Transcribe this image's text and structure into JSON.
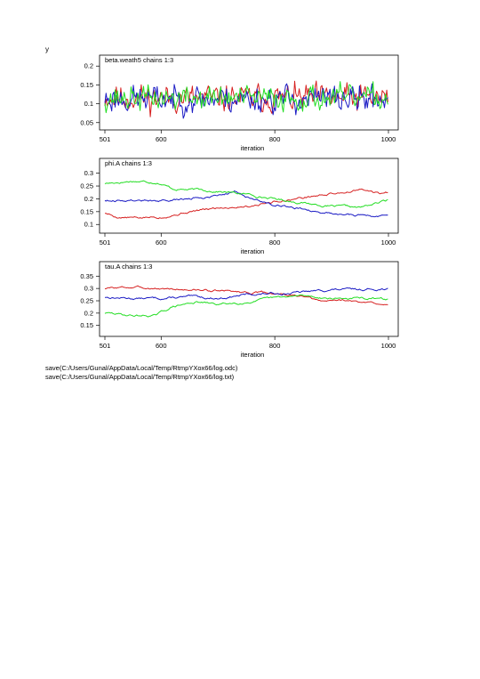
{
  "page": {
    "label": "y"
  },
  "colors": {
    "chain1": "#d62020",
    "chain2": "#1a1ac4",
    "chain3": "#22dd22"
  },
  "log": [
    "save(C:/Users/Gunal/AppData/Local/Temp/RtmpYXox66/log.odc)",
    "save(C:/Users/Gunal/AppData/Local/Temp/RtmpYXox66/log.txt)"
  ],
  "chart_data": [
    {
      "type": "line",
      "title": "beta.weath5 chains 1:3",
      "xlabel": "iteration",
      "ylabel": "",
      "xlim": [
        501,
        1000
      ],
      "ylim": [
        0.04,
        0.21
      ],
      "xticks": [
        501,
        600,
        800,
        1000
      ],
      "xtick_labels": [
        "501",
        "600",
        "800",
        "1000"
      ],
      "yticks": [
        0.05,
        0.1,
        0.15,
        0.2
      ],
      "ytick_labels": [
        "0.05",
        "0.1",
        "0.15",
        "0.2"
      ],
      "series": [
        {
          "color": "#d62020",
          "kind": "noise",
          "level": [
            [
              501,
              0.115
            ],
            [
              1000,
              0.115
            ]
          ],
          "amp": 0.045,
          "seed": 11
        },
        {
          "color": "#1a1ac4",
          "kind": "noise",
          "level": [
            [
              501,
              0.113
            ],
            [
              1000,
              0.113
            ]
          ],
          "amp": 0.045,
          "seed": 23
        },
        {
          "color": "#22dd22",
          "kind": "noise",
          "level": [
            [
              501,
              0.115
            ],
            [
              1000,
              0.115
            ]
          ],
          "amp": 0.04,
          "seed": 37
        }
      ]
    },
    {
      "type": "line",
      "title": "phi.A chains 1:3",
      "xlabel": "iteration",
      "ylabel": "",
      "xlim": [
        501,
        1000
      ],
      "ylim": [
        0.08,
        0.33
      ],
      "xticks": [
        501,
        600,
        800,
        1000
      ],
      "xtick_labels": [
        "501",
        "600",
        "800",
        "1000"
      ],
      "yticks": [
        0.1,
        0.15,
        0.2,
        0.25,
        0.3
      ],
      "ytick_labels": [
        "0.1",
        "0.15",
        "0.2",
        "0.25",
        "0.3"
      ],
      "series": [
        {
          "color": "#d62020",
          "kind": "walk",
          "level": [
            [
              501,
              0.145
            ],
            [
              520,
              0.13
            ],
            [
              560,
              0.125
            ],
            [
              600,
              0.13
            ],
            [
              650,
              0.15
            ],
            [
              700,
              0.165
            ],
            [
              760,
              0.175
            ],
            [
              800,
              0.19
            ],
            [
              850,
              0.205
            ],
            [
              900,
              0.22
            ],
            [
              950,
              0.235
            ],
            [
              985,
              0.22
            ],
            [
              1000,
              0.225
            ]
          ],
          "amp": 0.006,
          "seed": 5
        },
        {
          "color": "#1a1ac4",
          "kind": "walk",
          "level": [
            [
              501,
              0.195
            ],
            [
              550,
              0.195
            ],
            [
              600,
              0.19
            ],
            [
              650,
              0.2
            ],
            [
              700,
              0.215
            ],
            [
              730,
              0.23
            ],
            [
              760,
              0.2
            ],
            [
              800,
              0.18
            ],
            [
              850,
              0.16
            ],
            [
              900,
              0.145
            ],
            [
              950,
              0.135
            ],
            [
              985,
              0.13
            ],
            [
              1000,
              0.14
            ]
          ],
          "amp": 0.006,
          "seed": 9
        },
        {
          "color": "#22dd22",
          "kind": "walk",
          "level": [
            [
              501,
              0.26
            ],
            [
              550,
              0.27
            ],
            [
              595,
              0.265
            ],
            [
              620,
              0.24
            ],
            [
              700,
              0.23
            ],
            [
              760,
              0.215
            ],
            [
              800,
              0.2
            ],
            [
              850,
              0.185
            ],
            [
              900,
              0.17
            ],
            [
              950,
              0.165
            ],
            [
              975,
              0.18
            ],
            [
              1000,
              0.195
            ]
          ],
          "amp": 0.006,
          "seed": 17
        }
      ]
    },
    {
      "type": "line",
      "title": "tau.A chains 1:3",
      "xlabel": "iteration",
      "ylabel": "",
      "xlim": [
        501,
        1000
      ],
      "ylim": [
        0.12,
        0.38
      ],
      "xticks": [
        501,
        600,
        800,
        1000
      ],
      "xtick_labels": [
        "501",
        "600",
        "800",
        "1000"
      ],
      "yticks": [
        0.15,
        0.2,
        0.25,
        0.3,
        0.35
      ],
      "ytick_labels": [
        "0.15",
        "0.2",
        "0.25",
        "0.3",
        "0.35"
      ],
      "series": [
        {
          "color": "#d62020",
          "kind": "walk",
          "level": [
            [
              501,
              0.3
            ],
            [
              550,
              0.305
            ],
            [
              600,
              0.3
            ],
            [
              650,
              0.295
            ],
            [
              700,
              0.29
            ],
            [
              750,
              0.285
            ],
            [
              800,
              0.28
            ],
            [
              850,
              0.265
            ],
            [
              880,
              0.245
            ],
            [
              920,
              0.255
            ],
            [
              960,
              0.24
            ],
            [
              1000,
              0.24
            ]
          ],
          "amp": 0.006,
          "seed": 3
        },
        {
          "color": "#1a1ac4",
          "kind": "walk",
          "level": [
            [
              501,
              0.265
            ],
            [
              550,
              0.26
            ],
            [
              600,
              0.26
            ],
            [
              650,
              0.265
            ],
            [
              700,
              0.26
            ],
            [
              750,
              0.275
            ],
            [
              800,
              0.28
            ],
            [
              850,
              0.285
            ],
            [
              900,
              0.295
            ],
            [
              950,
              0.295
            ],
            [
              1000,
              0.3
            ]
          ],
          "amp": 0.006,
          "seed": 13
        },
        {
          "color": "#22dd22",
          "kind": "walk",
          "level": [
            [
              501,
              0.2
            ],
            [
              550,
              0.19
            ],
            [
              590,
              0.19
            ],
            [
              620,
              0.225
            ],
            [
              660,
              0.245
            ],
            [
              700,
              0.235
            ],
            [
              750,
              0.245
            ],
            [
              800,
              0.26
            ],
            [
              850,
              0.27
            ],
            [
              900,
              0.26
            ],
            [
              950,
              0.26
            ],
            [
              1000,
              0.255
            ]
          ],
          "amp": 0.006,
          "seed": 29
        }
      ]
    }
  ]
}
